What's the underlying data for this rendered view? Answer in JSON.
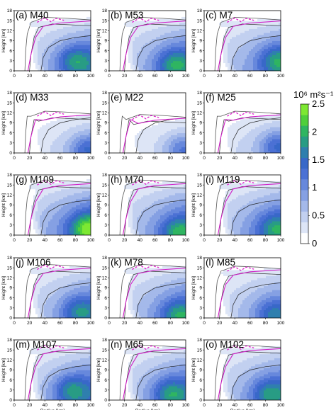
{
  "chart_data": {
    "type": "contour",
    "colorbar": {
      "label": "10⁶ m²s⁻¹",
      "ticks": [
        "2.5",
        "2",
        "1.5",
        "1",
        "0.5",
        "0"
      ],
      "range": [
        0,
        2.5
      ],
      "colors": [
        "#ffffff",
        "#dde5f6",
        "#c2d0f0",
        "#a4b9ea",
        "#85a0e3",
        "#6788dc",
        "#4b71d4",
        "#3868c8",
        "#2f7fae",
        "#289c84",
        "#2fb561",
        "#4fcf3b",
        "#7de832"
      ]
    },
    "x_ticks": [
      "0",
      "20",
      "40",
      "60",
      "80",
      "100"
    ],
    "y_ticks": [
      "0",
      "3",
      "6",
      "9",
      "12",
      "15",
      "18"
    ],
    "x_range": [
      0,
      100
    ],
    "y_range": [
      0,
      18
    ],
    "xlabel": "Radius [km]",
    "ylabel": "Height [km]",
    "panels": [
      {
        "title": "(a) M40",
        "intensity": 1.0,
        "top": 15.5,
        "core": [
          80,
          3,
          2.1
        ]
      },
      {
        "title": "(b) M53",
        "intensity": 1.0,
        "top": 15.5,
        "core": [
          85,
          2,
          2.1
        ]
      },
      {
        "title": "(c) M7",
        "intensity": 0.95,
        "top": 15.5,
        "core": [
          95,
          3,
          2.0
        ]
      },
      {
        "title": "(d) M33",
        "intensity": 0.5,
        "top": 12.0,
        "core": [
          95,
          1,
          1.4
        ]
      },
      {
        "title": "(e) M22",
        "intensity": 0.4,
        "top": 11.0,
        "core": [
          95,
          1,
          1.2
        ]
      },
      {
        "title": "(f) M25",
        "intensity": 0.55,
        "top": 12.0,
        "core": [
          95,
          2,
          1.4
        ]
      },
      {
        "title": "(g) M109",
        "intensity": 1.1,
        "top": 16.0,
        "core": [
          95,
          2,
          2.5
        ]
      },
      {
        "title": "(h) M70",
        "intensity": 1.0,
        "top": 16.0,
        "core": [
          90,
          1,
          2.1
        ]
      },
      {
        "title": "(i) M119",
        "intensity": 1.0,
        "top": 16.0,
        "core": [
          92,
          2,
          2.0
        ]
      },
      {
        "title": "(j) M106",
        "intensity": 0.9,
        "top": 15.5,
        "core": [
          85,
          2,
          1.9
        ]
      },
      {
        "title": "(k) M78",
        "intensity": 0.95,
        "top": 15.5,
        "core": [
          90,
          1,
          2.0
        ]
      },
      {
        "title": "(l) M85",
        "intensity": 0.8,
        "top": 15.0,
        "core": [
          90,
          1,
          1.7
        ]
      },
      {
        "title": "(m) M107",
        "intensity": 1.0,
        "top": 16.0,
        "core": [
          75,
          3,
          2.1
        ]
      },
      {
        "title": "(n) M65",
        "intensity": 1.0,
        "top": 16.0,
        "core": [
          80,
          2,
          2.1
        ]
      },
      {
        "title": "(o) M102",
        "intensity": 0.95,
        "top": 16.0,
        "core": [
          85,
          2,
          2.0
        ]
      }
    ]
  }
}
